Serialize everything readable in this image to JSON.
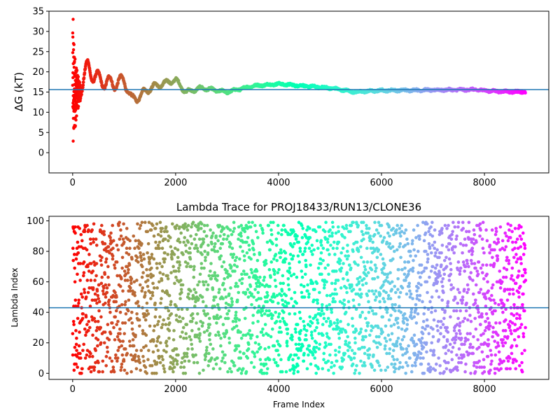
{
  "chart_data": [
    {
      "type": "scatter",
      "title": "",
      "xlabel": "",
      "ylabel": "ΔG (kT)",
      "xlim": [
        -460,
        9250
      ],
      "ylim": [
        -5,
        35
      ],
      "xticks": [
        0,
        2000,
        4000,
        6000,
        8000
      ],
      "yticks": [
        0,
        5,
        10,
        15,
        20,
        25,
        30,
        35
      ],
      "grid": false,
      "colormap": "rainbow (red at frame 0 → violet at last frame)",
      "hline": {
        "y": 15.6,
        "color": "#1f77b4"
      },
      "n_points": 8800,
      "trace_description": "ΔG estimate vs frame; scatter between -3 and 33 in the first ~150 frames, oscillating around 15-20 until ~2000, then converging near 15-16.",
      "trace_key_points": [
        [
          0,
          10
        ],
        [
          50,
          22
        ],
        [
          100,
          15
        ],
        [
          200,
          18
        ],
        [
          300,
          21
        ],
        [
          500,
          18
        ],
        [
          800,
          17
        ],
        [
          1000,
          18
        ],
        [
          1150,
          13
        ],
        [
          1300,
          14
        ],
        [
          1500,
          16
        ],
        [
          2000,
          18
        ],
        [
          2200,
          15
        ],
        [
          2500,
          16
        ],
        [
          3000,
          15
        ],
        [
          3500,
          16.5
        ],
        [
          4000,
          17
        ],
        [
          4500,
          16.5
        ],
        [
          5000,
          16
        ],
        [
          5500,
          15
        ],
        [
          6000,
          15.4
        ],
        [
          7000,
          15.5
        ],
        [
          7800,
          15.6
        ],
        [
          8200,
          15.2
        ],
        [
          8800,
          15
        ]
      ]
    },
    {
      "type": "scatter",
      "title": "Lambda Trace for PROJ18433/RUN13/CLONE36",
      "xlabel": "Frame Index",
      "ylabel": "Lambda Index",
      "xlim": [
        -460,
        9250
      ],
      "ylim": [
        -4,
        103
      ],
      "xticks": [
        0,
        2000,
        4000,
        6000,
        8000
      ],
      "yticks": [
        0,
        20,
        40,
        60,
        80,
        100
      ],
      "grid": false,
      "colormap": "rainbow (red at frame 0 → violet at last frame)",
      "hline": {
        "y": 43,
        "color": "#1f77b4"
      },
      "n_points": 8800,
      "y_range": [
        0,
        99
      ],
      "trace_description": "Lambda index per frame, points spread across 0-99 for all frames, colored by frame index."
    }
  ]
}
